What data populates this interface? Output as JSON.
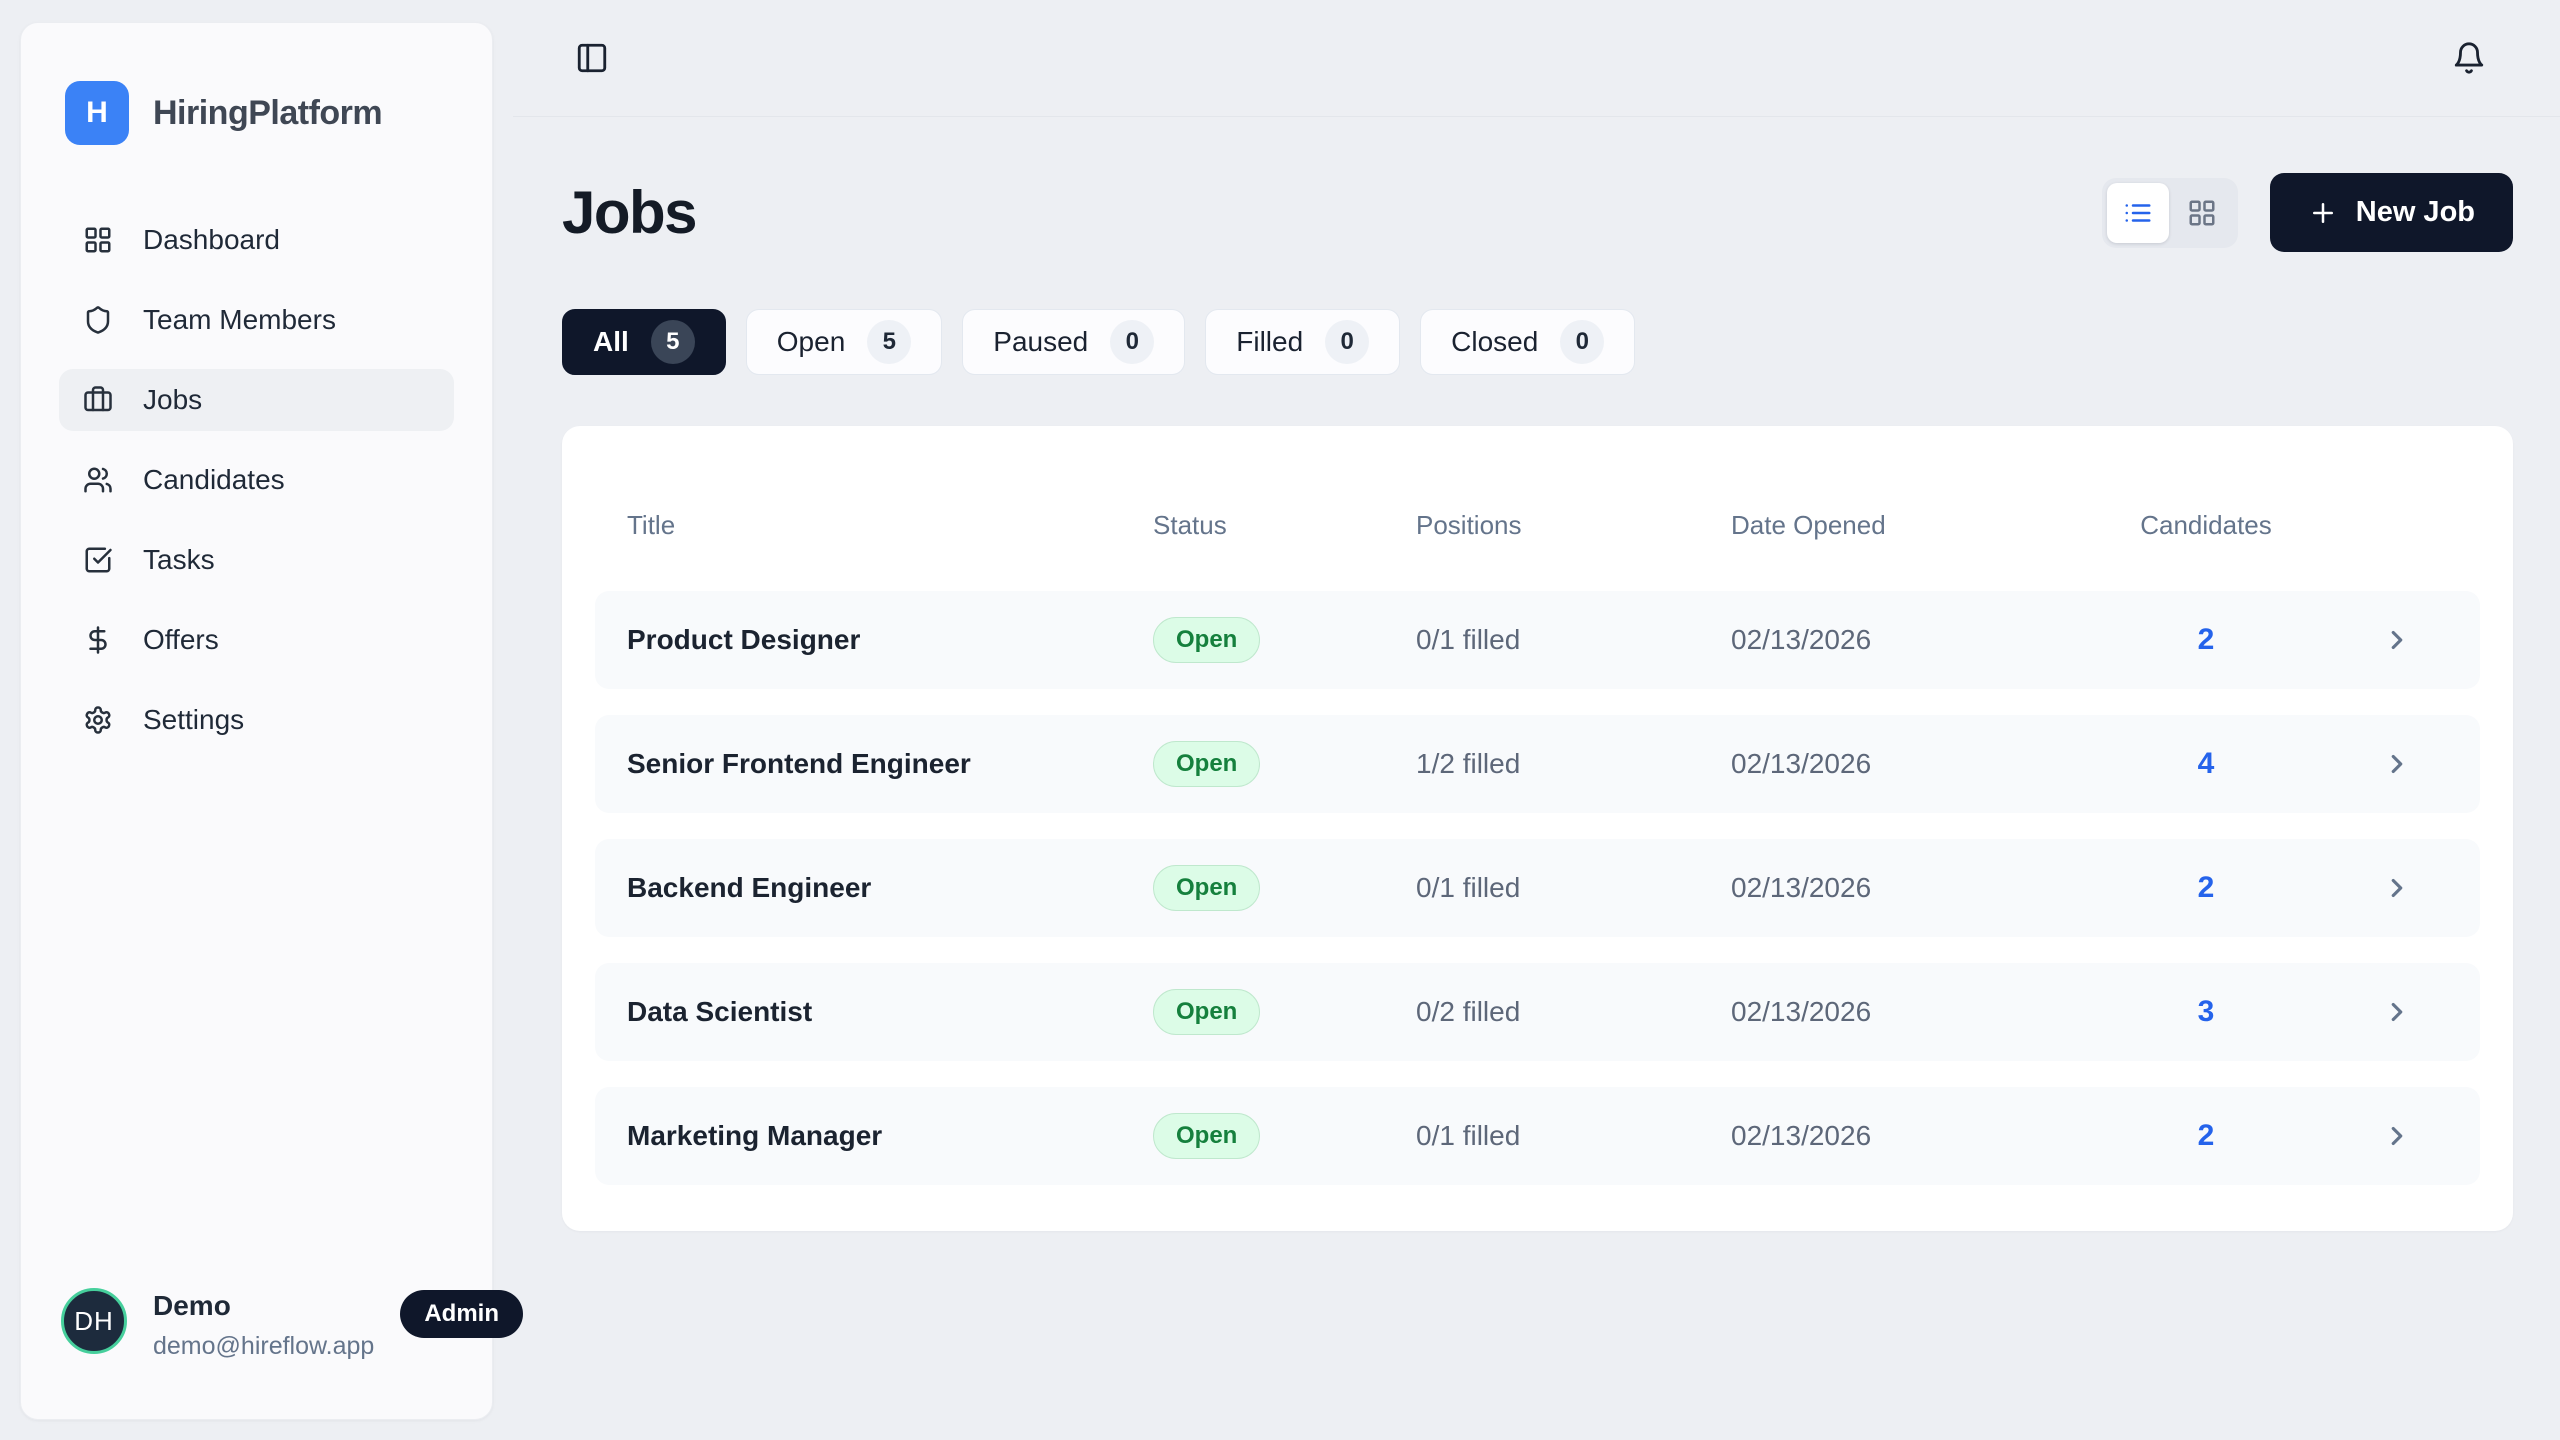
{
  "brand": {
    "logo_letter": "H",
    "name": "HiringPlatform"
  },
  "colors": {
    "brand_blue": "#3b82f6",
    "accent_navy": "#0f172a",
    "link_blue": "#2563eb",
    "status_open_bg": "#dcfce7",
    "status_open_text": "#15803d",
    "avatar_ring_green": "#46cf9c",
    "page_bg": "#edeff3"
  },
  "sidebar": {
    "items": [
      {
        "label": "Dashboard",
        "icon": "dashboard-icon",
        "active": false
      },
      {
        "label": "Team Members",
        "icon": "shield-icon",
        "active": false
      },
      {
        "label": "Jobs",
        "icon": "briefcase-icon",
        "active": true
      },
      {
        "label": "Candidates",
        "icon": "users-icon",
        "active": false
      },
      {
        "label": "Tasks",
        "icon": "tasks-icon",
        "active": false
      },
      {
        "label": "Offers",
        "icon": "dollar-icon",
        "active": false
      },
      {
        "label": "Settings",
        "icon": "gear-icon",
        "active": false
      }
    ]
  },
  "user": {
    "initials": "DH",
    "name": "Demo",
    "role_badge": "Admin",
    "email": "demo@hireflow.app"
  },
  "page": {
    "title": "Jobs"
  },
  "toolbar": {
    "new_job_label": "New Job"
  },
  "filters": [
    {
      "label": "All",
      "count": "5",
      "active": true
    },
    {
      "label": "Open",
      "count": "5",
      "active": false
    },
    {
      "label": "Paused",
      "count": "0",
      "active": false
    },
    {
      "label": "Filled",
      "count": "0",
      "active": false
    },
    {
      "label": "Closed",
      "count": "0",
      "active": false
    }
  ],
  "table": {
    "columns": [
      "Title",
      "Status",
      "Positions",
      "Date Opened",
      "Candidates"
    ],
    "rows": [
      {
        "title": "Product Designer",
        "status": "Open",
        "positions": "0/1 filled",
        "date_opened": "02/13/2026",
        "candidates": "2"
      },
      {
        "title": "Senior Frontend Engineer",
        "status": "Open",
        "positions": "1/2 filled",
        "date_opened": "02/13/2026",
        "candidates": "4"
      },
      {
        "title": "Backend Engineer",
        "status": "Open",
        "positions": "0/1 filled",
        "date_opened": "02/13/2026",
        "candidates": "2"
      },
      {
        "title": "Data Scientist",
        "status": "Open",
        "positions": "0/2 filled",
        "date_opened": "02/13/2026",
        "candidates": "3"
      },
      {
        "title": "Marketing Manager",
        "status": "Open",
        "positions": "0/1 filled",
        "date_opened": "02/13/2026",
        "candidates": "2"
      }
    ]
  }
}
